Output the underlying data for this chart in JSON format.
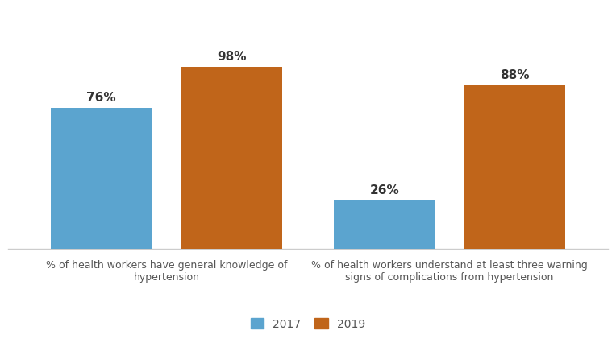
{
  "groups": [
    {
      "label": "% of health workers have general knowledge of\nhypertension",
      "values": [
        76,
        98
      ]
    },
    {
      "label": "% of health workers understand at least three warning\nsigns of complications from hypertension",
      "values": [
        26,
        88
      ]
    }
  ],
  "years": [
    "2017",
    "2019"
  ],
  "bar_colors": [
    "#5BA4CF",
    "#C0651A"
  ],
  "bar_width": 0.18,
  "ylim": [
    0,
    130
  ],
  "label_fontsize": 9.0,
  "value_fontsize": 11,
  "legend_fontsize": 10,
  "background_color": "#ffffff",
  "label_color": "#555555",
  "value_label_color": "#333333",
  "spine_color": "#cccccc",
  "group_centers": [
    0.28,
    0.78
  ],
  "xlim": [
    0.0,
    1.06
  ]
}
